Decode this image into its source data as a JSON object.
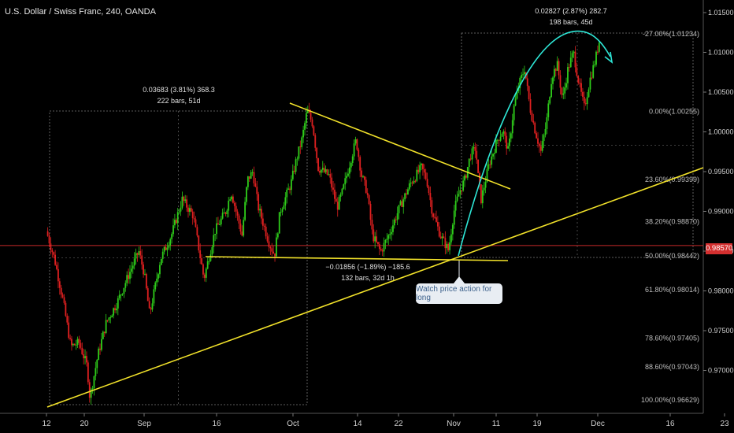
{
  "chart_data": {
    "type": "candlestick",
    "title": "U.S. Dollar / Swiss Franc, 240, OANDA",
    "y_axis": {
      "ticks": [
        "1.01500",
        "1.01000",
        "1.00500",
        "1.00000",
        "0.99500",
        "0.99000",
        "0.98500",
        "0.98000",
        "0.97500",
        "0.97000"
      ],
      "ylim": [
        0.9655,
        1.0165
      ]
    },
    "x_axis": {
      "ticks": [
        "12",
        "20",
        "Sep",
        "16",
        "Oct",
        "14",
        "22",
        "Nov",
        "11",
        "19",
        "Dec",
        "16",
        "23"
      ]
    },
    "current_price": "0.98570",
    "fib_levels": [
      {
        "label": "-27.00%(1.01234)",
        "value": 1.01234
      },
      {
        "label": "0.00%(1.00255)",
        "value": 1.00255
      },
      {
        "label": "23.60%(0.99399)",
        "value": 0.99399
      },
      {
        "label": "38.20%(0.98870)",
        "value": 0.9887
      },
      {
        "label": "50.00%(0.98442)",
        "value": 0.98442
      },
      {
        "label": "61.80%(0.98014)",
        "value": 0.98014
      },
      {
        "label": "78.60%(0.97405)",
        "value": 0.97405
      },
      {
        "label": "88.60%(0.97043)",
        "value": 0.97043
      },
      {
        "label": "100.00%(0.96629)",
        "value": 0.96629
      }
    ],
    "measurements": [
      {
        "line1": "0.03683 (3.81%) 368.3",
        "line2": "222 bars, 51d"
      },
      {
        "line1": "−0.01856 (−1.89%) −185.6",
        "line2": "132 bars, 32d 1h"
      },
      {
        "line1": "0.02827 (2.87%) 282.7",
        "line2": "198 bars, 45d"
      }
    ],
    "price_path": [
      [
        0,
        0.9875
      ],
      [
        3,
        0.984
      ],
      [
        6,
        0.979
      ],
      [
        9,
        0.973
      ],
      [
        12,
        0.9735
      ],
      [
        15,
        0.9705
      ],
      [
        16,
        0.9665
      ],
      [
        19,
        0.972
      ],
      [
        22,
        0.976
      ],
      [
        26,
        0.9785
      ],
      [
        30,
        0.9818
      ],
      [
        34,
        0.985
      ],
      [
        36,
        0.9822
      ],
      [
        38,
        0.977
      ],
      [
        42,
        0.984
      ],
      [
        46,
        0.987
      ],
      [
        50,
        0.9915
      ],
      [
        54,
        0.9895
      ],
      [
        56,
        0.9855
      ],
      [
        58,
        0.9815
      ],
      [
        62,
        0.9875
      ],
      [
        66,
        0.99
      ],
      [
        68,
        0.9925
      ],
      [
        72,
        0.987
      ],
      [
        74,
        0.994
      ],
      [
        76,
        0.995
      ],
      [
        78,
        0.9905
      ],
      [
        82,
        0.986
      ],
      [
        84,
        0.9845
      ],
      [
        86,
        0.99
      ],
      [
        90,
        0.9935
      ],
      [
        92,
        0.9965
      ],
      [
        94,
        0.999
      ],
      [
        96,
        1.0027
      ],
      [
        98,
        1.001
      ],
      [
        100,
        0.9955
      ],
      [
        104,
        0.9945
      ],
      [
        107,
        0.9905
      ],
      [
        109,
        0.9925
      ],
      [
        112,
        0.9965
      ],
      [
        114,
        0.999
      ],
      [
        116,
        0.9945
      ],
      [
        118,
        0.9925
      ],
      [
        120,
        0.987
      ],
      [
        123,
        0.9849
      ],
      [
        126,
        0.987
      ],
      [
        130,
        0.9905
      ],
      [
        134,
        0.9935
      ],
      [
        138,
        0.9955
      ],
      [
        140,
        0.994
      ],
      [
        142,
        0.99
      ],
      [
        145,
        0.987
      ],
      [
        148,
        0.9851
      ],
      [
        150,
        0.99
      ],
      [
        152,
        0.9925
      ],
      [
        154,
        0.994
      ],
      [
        156,
        0.997
      ],
      [
        158,
        0.998
      ],
      [
        159,
        0.994
      ],
      [
        160,
        0.9915
      ],
      [
        163,
        0.996
      ],
      [
        166,
        0.999
      ],
      [
        168,
        1.0002
      ],
      [
        170,
        0.9975
      ],
      [
        172,
        1.003
      ],
      [
        174,
        1.006
      ],
      [
        176,
        1.008
      ],
      [
        178,
        1.003
      ],
      [
        180,
        1.0
      ],
      [
        182,
        0.9975
      ],
      [
        184,
        1.001
      ],
      [
        186,
        1.007
      ],
      [
        188,
        1.0085
      ],
      [
        190,
        1.004
      ],
      [
        192,
        1.008
      ],
      [
        194,
        1.01
      ],
      [
        196,
        1.006
      ],
      [
        198,
        1.003
      ],
      [
        200,
        1.0065
      ],
      [
        202,
        1.009
      ],
      [
        204,
        1.0123
      ]
    ]
  }
}
